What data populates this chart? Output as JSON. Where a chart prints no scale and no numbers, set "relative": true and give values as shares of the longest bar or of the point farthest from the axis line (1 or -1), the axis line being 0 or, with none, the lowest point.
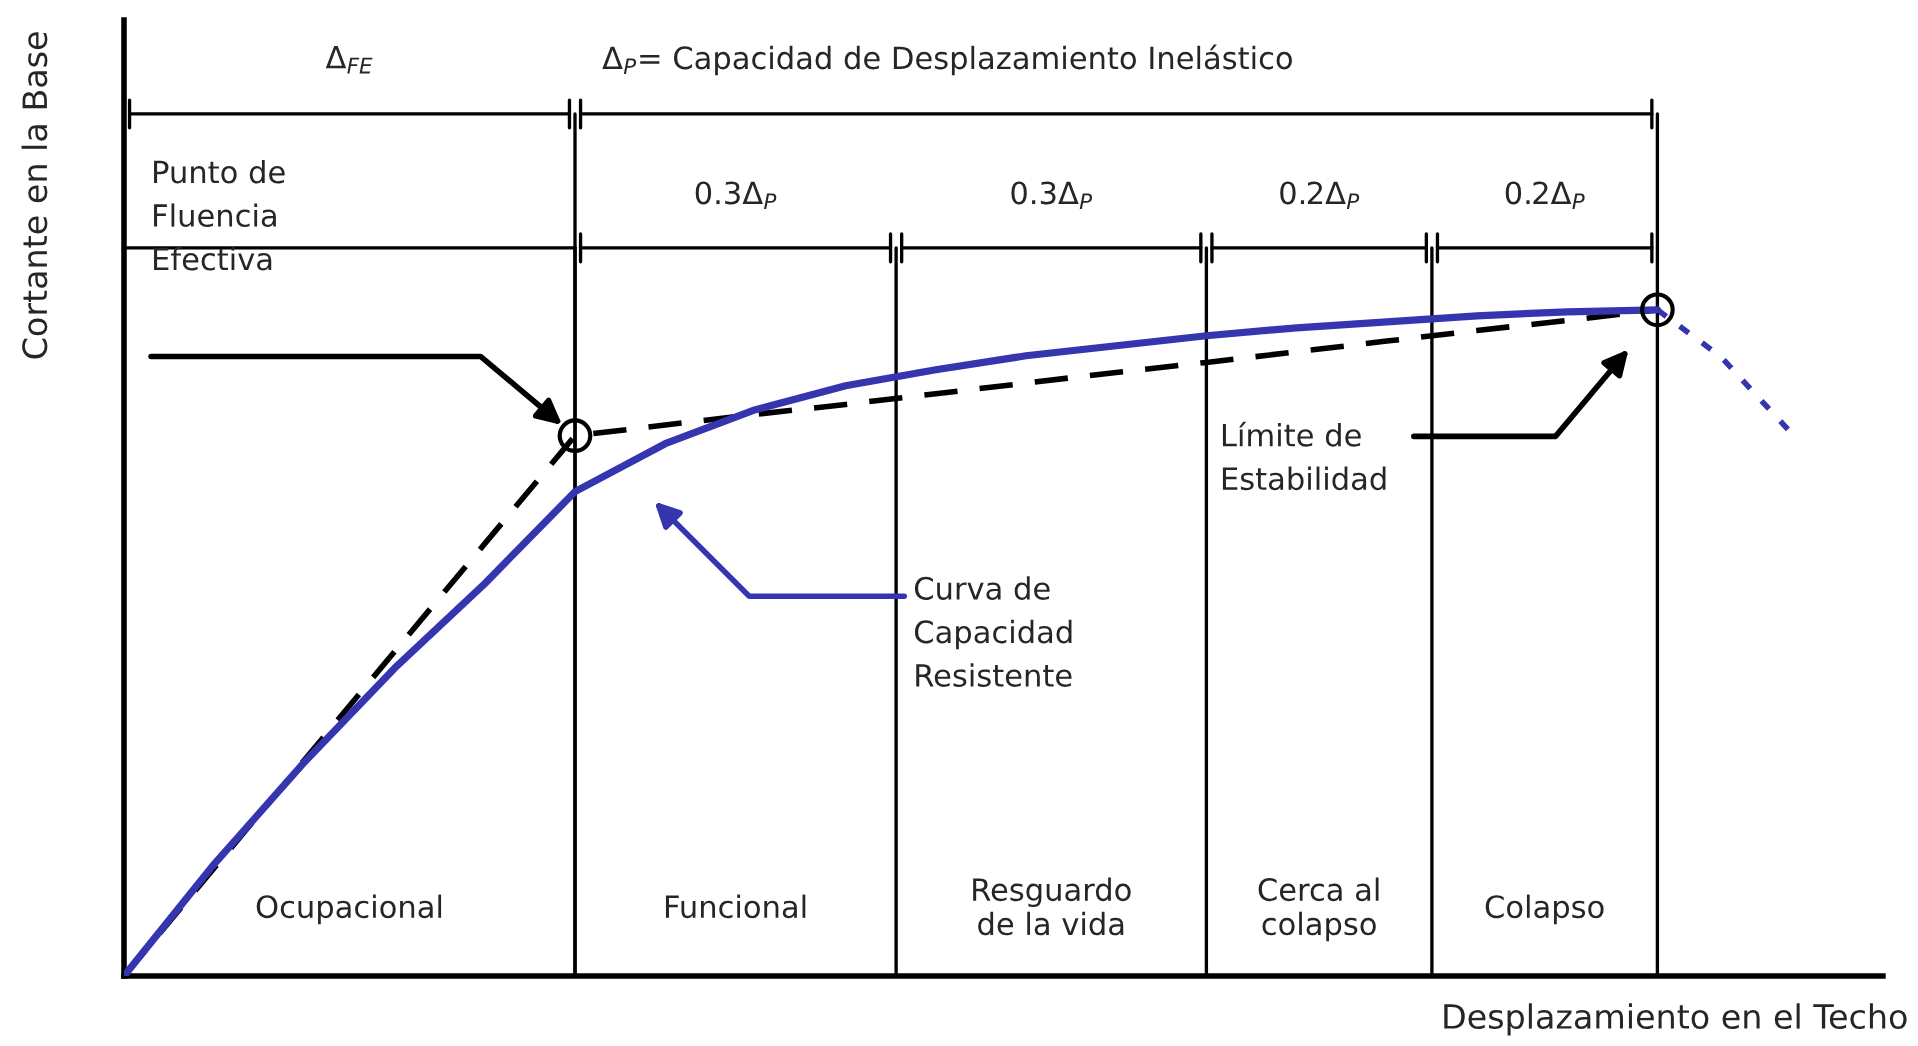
{
  "chart_data": {
    "type": "line",
    "relative": true,
    "xlabel": "Desplazamiento en el Techo",
    "ylabel": "Cortante en la Base",
    "categories": [
      null,
      null,
      null,
      null,
      null,
      null,
      null,
      null,
      null,
      null,
      null,
      null,
      null,
      null,
      null,
      null,
      null,
      null
    ],
    "series": [
      {
        "color": "#3535b0",
        "line_style": "solid",
        "values": [
          0,
          0.168,
          0.321,
          0.462,
          0.589,
          0.727,
          0.799,
          0.85,
          0.886,
          0.91,
          0.931,
          0.946,
          0.961,
          0.973,
          0.982,
          0.991,
          0.997,
          1.0
        ]
      },
      {
        "color": "#000000",
        "line_style": "dashed",
        "values": [
          0,
          0.162,
          0.324,
          0.487,
          0.649,
          0.811,
          0.827,
          0.843,
          0.858,
          0.874,
          0.89,
          0.906,
          0.921,
          0.937,
          0.953,
          0.969,
          0.984,
          1.0
        ]
      }
    ],
    "annotations": [
      "Δ$_{FE}$",
      "Δ$_{P}$= Capacidad de Desplazamiento Inelástico",
      "0.3Δ$_{P}$",
      "0.3Δ$_{P}$",
      "0.2Δ$_{P}$",
      "0.2Δ$_{P}$",
      "Punto de\nFluencia\nEfectiva",
      "Curva de\nCapacidad\nResistente",
      "Límite de\nEstabilidad",
      "Ocupacional",
      "Funcional",
      "Resguardo\nde la vida",
      "Cerca al\ncolapso",
      "Colapso"
    ]
  }
}
